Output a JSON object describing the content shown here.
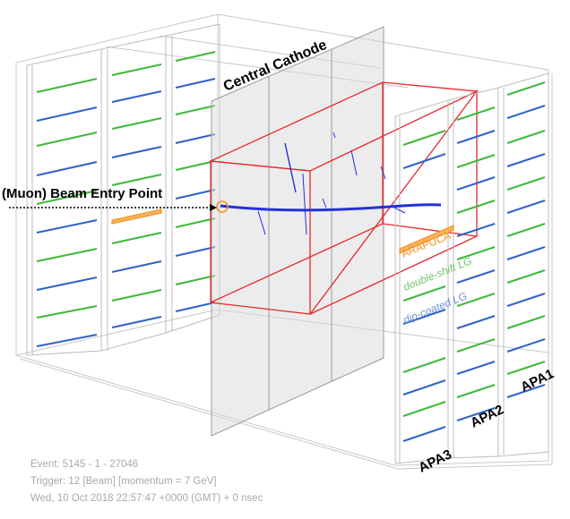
{
  "labels": {
    "central_cathode": "Central Cathode",
    "beam_entry": "(Muon) Beam Entry Point",
    "arapuca": "ARAPUCA",
    "double_shift": "double-shift LG",
    "dip_coated": "dip-coated LG",
    "apa1": "APA1",
    "apa2": "APA2",
    "apa3": "APA3"
  },
  "event_info": {
    "event": "Event: 5145 - 1 - 27046",
    "trigger": "Trigger: 12 [Beam] [momentum = 7 GeV]",
    "timestamp": "Wed, 10 Oct 2018 22:57:47 +0000 (GMT) + 0 nsec"
  },
  "colors": {
    "frame": "#c8c8c8",
    "cathode_fill": "#d9d9d9",
    "active_volume": "#e8262b",
    "double_shift_lg": "#3fb93a",
    "dip_coated_lg": "#2f63c9",
    "arapuca": "#f39321",
    "track": "#2430d8",
    "info_text": "#a9a9a9"
  }
}
